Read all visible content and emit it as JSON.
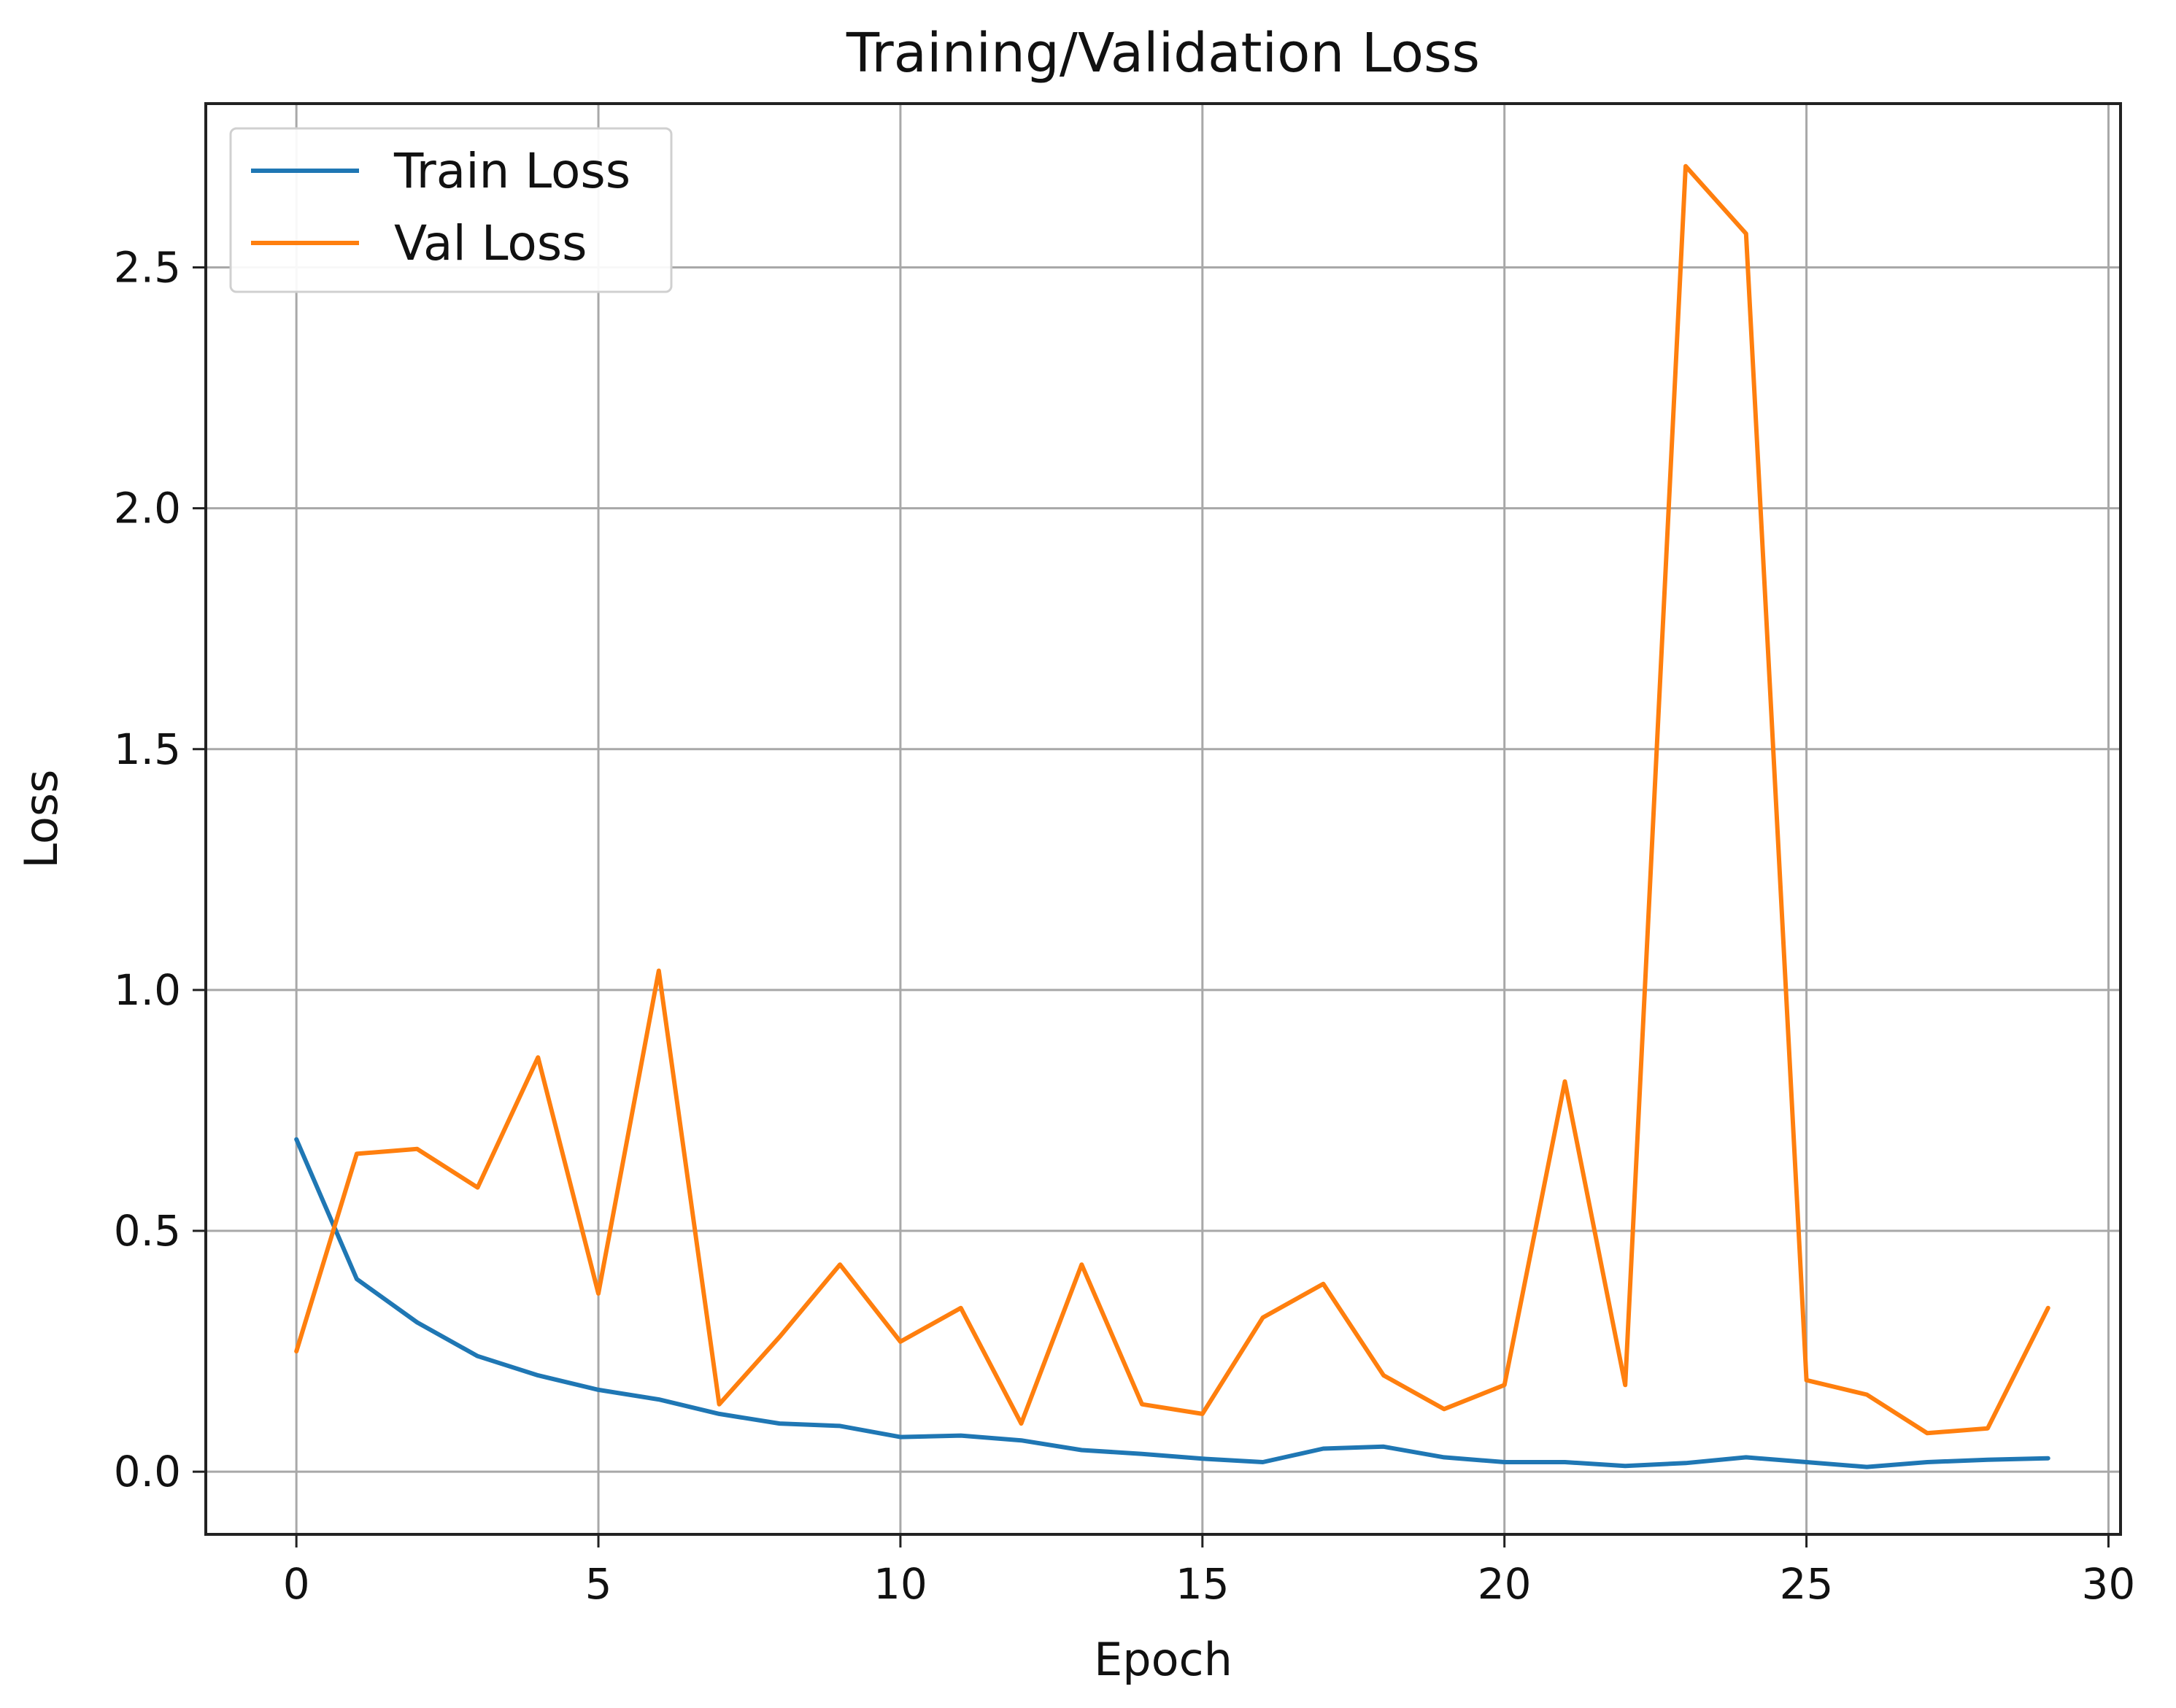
{
  "chart_data": {
    "type": "line",
    "title": "Training/Validation Loss",
    "xlabel": "Epoch",
    "ylabel": "Loss",
    "xlim": [
      -1.5,
      30.2
    ],
    "ylim": [
      -0.13,
      2.84
    ],
    "xticks": [
      0,
      5,
      10,
      15,
      20,
      25,
      30
    ],
    "xtick_labels": [
      "0",
      "5",
      "10",
      "15",
      "20",
      "25",
      "30"
    ],
    "yticks": [
      0.0,
      0.5,
      1.0,
      1.5,
      2.0,
      2.5
    ],
    "ytick_labels": [
      "0.0",
      "0.5",
      "1.0",
      "1.5",
      "2.0",
      "2.5"
    ],
    "grid": true,
    "legend_position": "top-left",
    "x": [
      0,
      1,
      2,
      3,
      4,
      5,
      6,
      7,
      8,
      9,
      10,
      11,
      12,
      13,
      14,
      15,
      16,
      17,
      18,
      19,
      20,
      21,
      22,
      23,
      24,
      25,
      26,
      27,
      28,
      29
    ],
    "series": [
      {
        "name": "Train Loss",
        "color": "#1f77b4",
        "values": [
          0.69,
          0.4,
          0.31,
          0.24,
          0.2,
          0.17,
          0.15,
          0.12,
          0.1,
          0.095,
          0.072,
          0.075,
          0.065,
          0.045,
          0.037,
          0.027,
          0.02,
          0.048,
          0.052,
          0.03,
          0.02,
          0.02,
          0.012,
          0.018,
          0.03,
          0.02,
          0.01,
          0.02,
          0.025,
          0.028
        ]
      },
      {
        "name": "Val Loss",
        "color": "#ff7f0e",
        "values": [
          0.25,
          0.66,
          0.67,
          0.59,
          0.86,
          0.37,
          1.04,
          0.14,
          0.28,
          0.43,
          0.27,
          0.34,
          0.1,
          0.43,
          0.14,
          0.12,
          0.32,
          0.39,
          0.2,
          0.13,
          0.18,
          0.81,
          0.18,
          2.71,
          2.57,
          0.19,
          0.16,
          0.08,
          0.09,
          0.34
        ]
      }
    ]
  }
}
